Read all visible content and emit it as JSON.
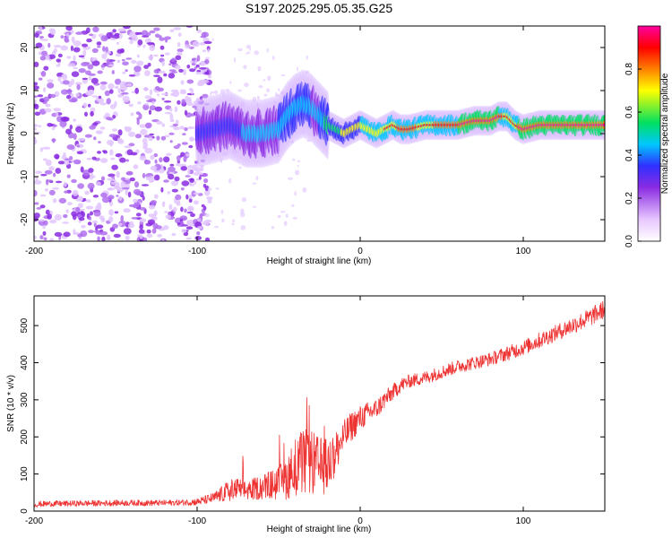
{
  "title": "S197.2025.295.05.35.G25",
  "chart_data": [
    {
      "type": "heatmap",
      "xlabel": "Height of straight line (km)",
      "ylabel": "Frequency (Hz)",
      "xlim": [
        -200,
        150
      ],
      "ylim": [
        -25,
        25
      ],
      "xticks": [
        -200,
        -100,
        0,
        100
      ],
      "yticks": [
        -20,
        -10,
        0,
        10,
        20
      ],
      "colorbar": {
        "label": "Normalized spectral amplitude",
        "range": [
          0,
          1
        ],
        "ticks": [
          "0.0",
          "0.2",
          "0.4",
          "0.6",
          "0.8"
        ],
        "colors": [
          "#ffffff",
          "#e8c8ff",
          "#8a2be2",
          "#3030ff",
          "#00c8ff",
          "#00e060",
          "#ffff00",
          "#ff8000",
          "#ff0000",
          "#ff00a0"
        ]
      },
      "ridge": {
        "x": [
          -100,
          -90,
          -80,
          -70,
          -60,
          -50,
          -45,
          -40,
          -35,
          -30,
          -25,
          -20,
          -15,
          -10,
          -5,
          0,
          5,
          10,
          15,
          20,
          25,
          30,
          40,
          50,
          60,
          70,
          80,
          85,
          90,
          95,
          100,
          110,
          120,
          130,
          140,
          150
        ],
        "freq": [
          0,
          1,
          2,
          0,
          0,
          1,
          4,
          6,
          7,
          6,
          4,
          2,
          1,
          0,
          1,
          2,
          1,
          0,
          1,
          2,
          1,
          1,
          2,
          2,
          2,
          3,
          3,
          4,
          4,
          2,
          1,
          2,
          2,
          2,
          2,
          2
        ],
        "amplitude": [
          0.35,
          0.4,
          0.4,
          0.45,
          0.45,
          0.5,
          0.55,
          0.55,
          0.55,
          0.5,
          0.5,
          0.6,
          0.65,
          0.7,
          0.7,
          0.7,
          0.75,
          0.75,
          0.8,
          0.85,
          0.9,
          0.9,
          0.85,
          0.9,
          0.9,
          0.95,
          0.95,
          0.9,
          0.85,
          0.85,
          0.95,
          0.95,
          0.95,
          0.95,
          0.95,
          0.95
        ]
      },
      "noise_region": {
        "x_from": -200,
        "x_to": -100,
        "level": 0.25
      }
    },
    {
      "type": "line",
      "xlabel": "Height of straight line (km)",
      "ylabel": "SNR (10 * v/v)",
      "xlim": [
        -200,
        150
      ],
      "ylim": [
        0,
        580
      ],
      "xticks": [
        -200,
        -100,
        0,
        100
      ],
      "yticks": [
        0,
        100,
        200,
        300,
        400,
        500
      ],
      "series": [
        {
          "name": "SNR",
          "color": "#ee3333",
          "x": [
            -200,
            -190,
            -180,
            -170,
            -160,
            -150,
            -140,
            -130,
            -120,
            -110,
            -100,
            -95,
            -90,
            -85,
            -80,
            -75,
            -70,
            -65,
            -60,
            -55,
            -50,
            -45,
            -40,
            -35,
            -30,
            -25,
            -20,
            -15,
            -10,
            -5,
            0,
            5,
            10,
            15,
            20,
            25,
            30,
            35,
            40,
            50,
            60,
            70,
            80,
            90,
            100,
            110,
            120,
            130,
            140,
            150
          ],
          "y": [
            18,
            20,
            20,
            21,
            21,
            22,
            22,
            22,
            22,
            23,
            25,
            30,
            35,
            45,
            55,
            60,
            55,
            60,
            65,
            70,
            75,
            90,
            120,
            130,
            130,
            120,
            120,
            160,
            200,
            230,
            250,
            265,
            275,
            300,
            320,
            340,
            350,
            355,
            360,
            375,
            390,
            400,
            410,
            425,
            440,
            460,
            480,
            500,
            520,
            545
          ],
          "noise": [
            8,
            8,
            8,
            8,
            8,
            8,
            8,
            8,
            8,
            8,
            10,
            12,
            15,
            22,
            30,
            30,
            28,
            30,
            35,
            40,
            45,
            60,
            80,
            90,
            90,
            80,
            75,
            60,
            45,
            40,
            35,
            30,
            28,
            25,
            22,
            20,
            18,
            18,
            18,
            18,
            18,
            18,
            18,
            20,
            20,
            22,
            22,
            24,
            25,
            25
          ]
        }
      ]
    }
  ]
}
